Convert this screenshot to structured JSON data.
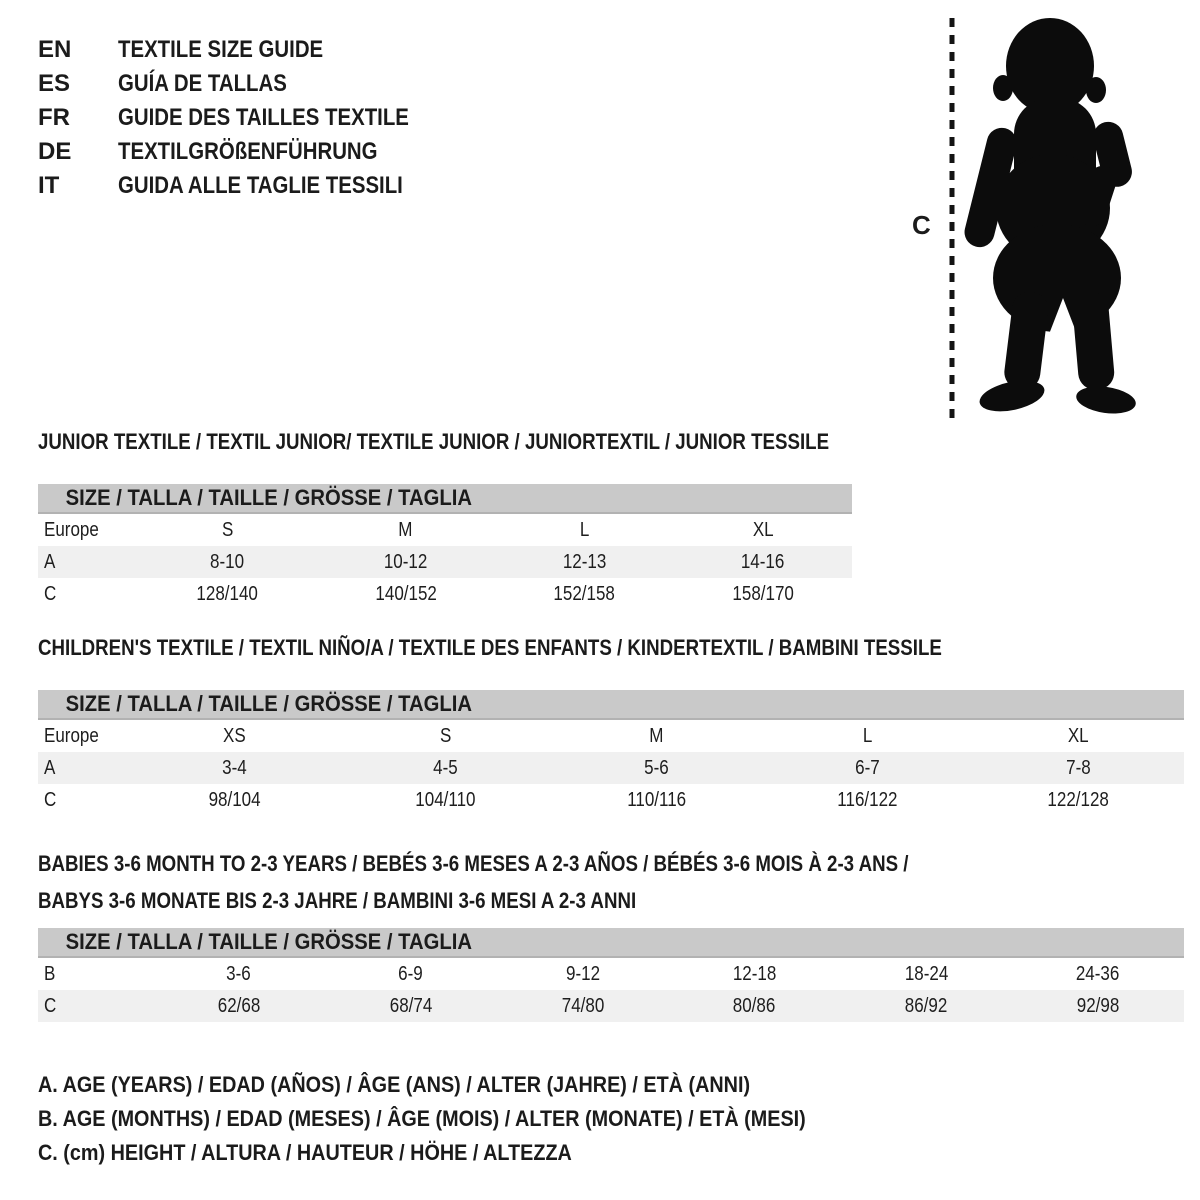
{
  "languages": [
    {
      "code": "EN",
      "title": "TEXTILE SIZE GUIDE"
    },
    {
      "code": "ES",
      "title": "GUÍA DE TALLAS"
    },
    {
      "code": "FR",
      "title": "GUIDE DES TAILLES TEXTILE"
    },
    {
      "code": "DE",
      "title": "TEXTILGRÖßENFÜHRUNG"
    },
    {
      "code": "IT",
      "title": "GUIDA ALLE TAGLIE TESSILI"
    }
  ],
  "figure": {
    "icon": "toddler-silhouette",
    "measure_label": "C"
  },
  "sections": [
    {
      "title": "JUNIOR TEXTILE / TEXTIL JUNIOR/ TEXTILE JUNIOR / JUNIORTEXTIL / JUNIOR TESSILE",
      "size_header": "SIZE / TALLA / TAILLE / GRÖSSE / TAGLIA",
      "rows": [
        {
          "label": "Europe",
          "values": [
            "S",
            "M",
            "L",
            "XL"
          ],
          "shaded": false
        },
        {
          "label": "A",
          "values": [
            "8-10",
            "10-12",
            "12-13",
            "14-16"
          ],
          "shaded": true
        },
        {
          "label": "C",
          "values": [
            "128/140",
            "140/152",
            "152/158",
            "158/170"
          ],
          "shaded": false
        }
      ]
    },
    {
      "title": "CHILDREN'S TEXTILE / TEXTIL NIÑO/A / TEXTILE DES ENFANTS / KINDERTEXTIL / BAMBINI TESSILE",
      "size_header": "SIZE / TALLA / TAILLE / GRÖSSE / TAGLIA",
      "rows": [
        {
          "label": "Europe",
          "values": [
            "XS",
            "S",
            "M",
            "L",
            "XL"
          ],
          "shaded": false
        },
        {
          "label": "A",
          "values": [
            "3-4",
            "4-5",
            "5-6",
            "6-7",
            "7-8"
          ],
          "shaded": true
        },
        {
          "label": "C",
          "values": [
            "98/104",
            "104/110",
            "110/116",
            "116/122",
            "122/128"
          ],
          "shaded": false
        }
      ]
    },
    {
      "title": "BABIES 3-6 MONTH TO 2-3 YEARS / BEBÉS 3-6 MESES A 2-3 AÑOS / BÉBÉS 3-6 MOIS À 2-3 ANS /",
      "title_line2": "BABYS 3-6 MONATE BIS 2-3 JAHRE / BAMBINI 3-6 MESI A 2-3 ANNI",
      "size_header": "SIZE / TALLA / TAILLE / GRÖSSE / TAGLIA",
      "rows": [
        {
          "label": "B",
          "values": [
            "3-6",
            "6-9",
            "9-12",
            "12-18",
            "18-24",
            "24-36"
          ],
          "shaded": false
        },
        {
          "label": "C",
          "values": [
            "62/68",
            "68/74",
            "74/80",
            "80/86",
            "86/92",
            "92/98"
          ],
          "shaded": true
        }
      ]
    }
  ],
  "legend": [
    "A. AGE (YEARS) / EDAD (AÑOS) / ÂGE (ANS) / ALTER (JAHRE) / ETÀ (ANNI)",
    "B. AGE (MONTHS) / EDAD (MESES) / ÂGE (MOIS) / ALTER (MONATE) / ETÀ (MESI)",
    "C. (cm) HEIGHT / ALTURA / HAUTEUR / HÖHE / ALTEZZA"
  ],
  "colors": {
    "header_band": "#c9c9c9",
    "band_edge": "#b2b2b2",
    "row_shade": "#f0f0f0",
    "silhouette": "#0c0c0c",
    "text": "#1b1b1b"
  }
}
